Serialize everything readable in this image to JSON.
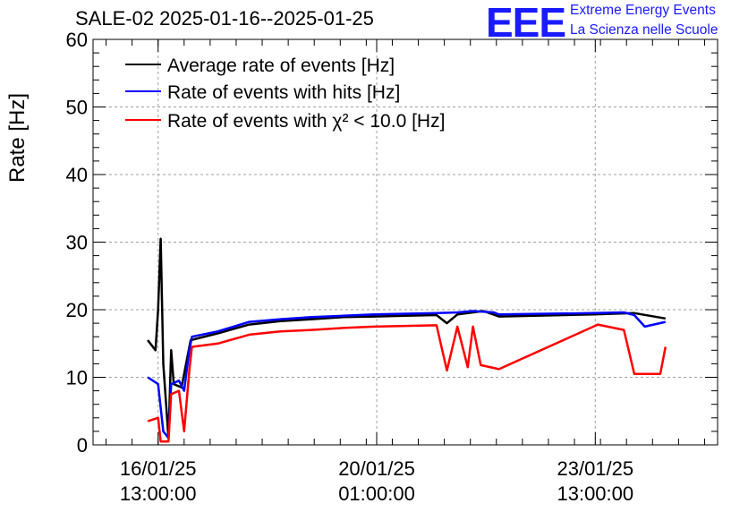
{
  "header": {
    "title": "SALE-02 2025-01-16--2025-01-25",
    "logo_text": "EEE",
    "logo_line1": "Extreme Energy Events",
    "logo_line2": "La Scienza nelle Scuole",
    "logo_color": "#1a1aff"
  },
  "chart_data": {
    "type": "line",
    "title": "SALE-02 2025-01-16--2025-01-25",
    "ylabel": "Rate [Hz]",
    "xlabel": "",
    "ylim": [
      0,
      60
    ],
    "yticks": [
      0,
      10,
      20,
      30,
      40,
      50,
      60
    ],
    "grid": true,
    "legend_position": "top-left",
    "x_tick_labels": [
      {
        "date": "16/01/25",
        "time": "13:00:00"
      },
      {
        "date": "20/01/25",
        "time": "01:00:00"
      },
      {
        "date": "23/01/25",
        "time": "13:00:00"
      }
    ],
    "series": [
      {
        "name": "Average rate of events [Hz]",
        "color": "#000000",
        "points": [
          [
            "2025-01-16 09:00",
            15.5
          ],
          [
            "2025-01-16 12:00",
            14.0
          ],
          [
            "2025-01-16 13:00",
            20.0
          ],
          [
            "2025-01-16 14:00",
            30.5
          ],
          [
            "2025-01-16 15:00",
            12.0
          ],
          [
            "2025-01-16 17:00",
            1.0
          ],
          [
            "2025-01-16 18:00",
            14.0
          ],
          [
            "2025-01-16 19:00",
            9.0
          ],
          [
            "2025-01-16 22:00",
            8.5
          ],
          [
            "2025-01-17 00:00",
            12.5
          ],
          [
            "2025-01-17 01:30",
            15.5
          ],
          [
            "2025-01-17 12:00",
            16.5
          ],
          [
            "2025-01-18 00:00",
            17.8
          ],
          [
            "2025-01-18 12:00",
            18.3
          ],
          [
            "2025-01-19 00:00",
            18.6
          ],
          [
            "2025-01-19 12:00",
            18.9
          ],
          [
            "2025-01-20 00:00",
            19.0
          ],
          [
            "2025-01-20 12:00",
            19.1
          ],
          [
            "2025-01-21 00:00",
            19.2
          ],
          [
            "2025-01-21 04:00",
            18.0
          ],
          [
            "2025-01-21 08:00",
            19.3
          ],
          [
            "2025-01-21 14:00",
            19.6
          ],
          [
            "2025-01-21 18:00",
            19.8
          ],
          [
            "2025-01-22 00:00",
            19.0
          ],
          [
            "2025-01-23 12:00",
            19.3
          ],
          [
            "2025-01-24 04:00",
            19.5
          ],
          [
            "2025-01-24 16:00",
            18.7
          ]
        ]
      },
      {
        "name": "Rate of events with hits [Hz]",
        "color": "#0000ff",
        "points": [
          [
            "2025-01-16 09:00",
            10.0
          ],
          [
            "2025-01-16 13:00",
            9.0
          ],
          [
            "2025-01-16 15:00",
            2.0
          ],
          [
            "2025-01-16 17:00",
            1.0
          ],
          [
            "2025-01-16 18:00",
            9.0
          ],
          [
            "2025-01-16 21:00",
            9.5
          ],
          [
            "2025-01-16 23:00",
            8.0
          ],
          [
            "2025-01-17 01:00",
            14.0
          ],
          [
            "2025-01-17 02:00",
            16.0
          ],
          [
            "2025-01-17 12:00",
            16.8
          ],
          [
            "2025-01-18 00:00",
            18.2
          ],
          [
            "2025-01-18 12:00",
            18.6
          ],
          [
            "2025-01-19 00:00",
            18.9
          ],
          [
            "2025-01-19 12:00",
            19.1
          ],
          [
            "2025-01-20 00:00",
            19.3
          ],
          [
            "2025-01-20 12:00",
            19.4
          ],
          [
            "2025-01-21 00:00",
            19.5
          ],
          [
            "2025-01-21 08:00",
            19.6
          ],
          [
            "2025-01-21 14:00",
            19.8
          ],
          [
            "2025-01-21 22:00",
            19.6
          ],
          [
            "2025-01-22 00:00",
            19.3
          ],
          [
            "2025-01-23 12:00",
            19.5
          ],
          [
            "2025-01-24 00:00",
            19.6
          ],
          [
            "2025-01-24 04:00",
            19.2
          ],
          [
            "2025-01-24 08:00",
            17.5
          ],
          [
            "2025-01-24 16:00",
            18.2
          ]
        ]
      },
      {
        "name": "Rate of events with χ² < 10.0 [Hz]",
        "color": "#ff0000",
        "points": [
          [
            "2025-01-16 09:00",
            3.5
          ],
          [
            "2025-01-16 13:00",
            4.0
          ],
          [
            "2025-01-16 14:00",
            0.5
          ],
          [
            "2025-01-16 17:00",
            0.5
          ],
          [
            "2025-01-16 18:00",
            7.5
          ],
          [
            "2025-01-16 21:00",
            8.0
          ],
          [
            "2025-01-16 23:00",
            2.0
          ],
          [
            "2025-01-17 01:00",
            11.0
          ],
          [
            "2025-01-17 02:00",
            14.5
          ],
          [
            "2025-01-17 12:00",
            15.0
          ],
          [
            "2025-01-18 00:00",
            16.3
          ],
          [
            "2025-01-18 12:00",
            16.8
          ],
          [
            "2025-01-19 00:00",
            17.0
          ],
          [
            "2025-01-19 12:00",
            17.3
          ],
          [
            "2025-01-20 00:00",
            17.5
          ],
          [
            "2025-01-20 12:00",
            17.6
          ],
          [
            "2025-01-21 00:00",
            17.7
          ],
          [
            "2025-01-21 04:00",
            11.0
          ],
          [
            "2025-01-21 08:00",
            17.5
          ],
          [
            "2025-01-21 12:00",
            11.5
          ],
          [
            "2025-01-21 14:00",
            17.5
          ],
          [
            "2025-01-21 17:00",
            11.8
          ],
          [
            "2025-01-22 00:00",
            11.2
          ],
          [
            "2025-01-23 14:00",
            17.8
          ],
          [
            "2025-01-24 00:00",
            17.0
          ],
          [
            "2025-01-24 04:00",
            10.5
          ],
          [
            "2025-01-24 14:00",
            10.5
          ],
          [
            "2025-01-24 16:00",
            14.5
          ]
        ]
      }
    ]
  }
}
